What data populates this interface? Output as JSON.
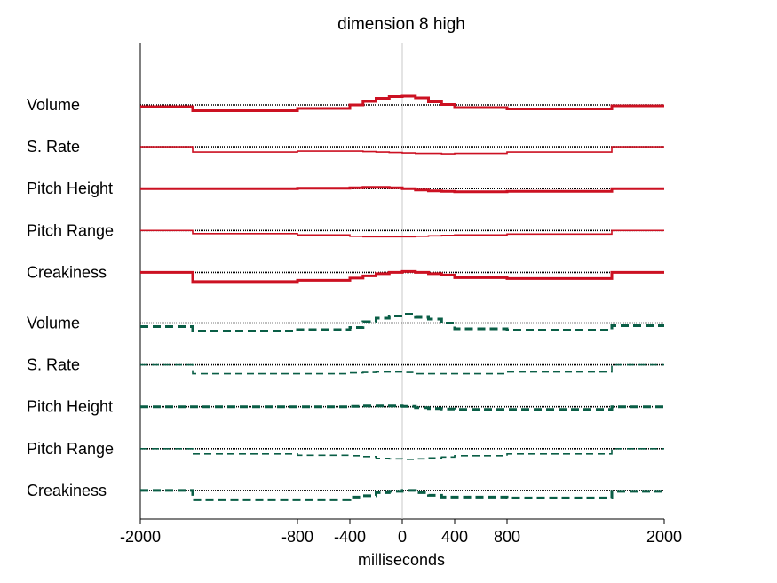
{
  "chart_data": {
    "type": "line",
    "title": "dimension  8 high",
    "xlabel": "milliseconds",
    "xlim": [
      -2000,
      2000
    ],
    "xticks": [
      -2000,
      -800,
      -400,
      0,
      400,
      800,
      2000
    ],
    "grid": false,
    "colors": {
      "upper": "#cc1122",
      "lower": "#0a5e46",
      "baseline": "#000000",
      "zero_line": "#c8c8c8"
    },
    "x": [
      -2000,
      -1600,
      -800,
      -400,
      -300,
      -200,
      -100,
      0,
      100,
      200,
      300,
      400,
      800,
      1600,
      2000
    ],
    "series": [
      {
        "label": "Volume",
        "group": "upper",
        "style": "solid",
        "weight": "thick",
        "values": [
          -0.4,
          -1.3,
          -0.8,
          0.0,
          0.8,
          1.5,
          1.9,
          2.0,
          1.6,
          0.7,
          0.1,
          -0.6,
          -0.9,
          -0.2,
          -0.2
        ]
      },
      {
        "label": "S. Rate",
        "group": "upper",
        "style": "solid",
        "weight": "thin",
        "values": [
          0.0,
          -1.2,
          -1.0,
          -1.0,
          -1.1,
          -1.2,
          -1.3,
          -1.4,
          -1.5,
          -1.5,
          -1.6,
          -1.5,
          -1.2,
          0.0,
          0.0
        ]
      },
      {
        "label": "Pitch Height",
        "group": "upper",
        "style": "solid",
        "weight": "thick",
        "values": [
          0.0,
          0.0,
          0.1,
          0.2,
          0.3,
          0.3,
          0.2,
          0.0,
          -0.3,
          -0.5,
          -0.6,
          -0.7,
          -0.6,
          0.0,
          0.0
        ]
      },
      {
        "label": "Pitch Range",
        "group": "upper",
        "style": "solid",
        "weight": "thin",
        "values": [
          0.0,
          -0.7,
          -1.0,
          -1.3,
          -1.4,
          -1.4,
          -1.4,
          -1.4,
          -1.3,
          -1.2,
          -1.1,
          -1.0,
          -0.8,
          0.0,
          0.0
        ]
      },
      {
        "label": "Creakiness",
        "group": "upper",
        "style": "solid",
        "weight": "thick",
        "values": [
          0.0,
          -2.1,
          -1.8,
          -1.3,
          -0.8,
          -0.3,
          0.0,
          0.2,
          0.0,
          -0.3,
          -0.6,
          -1.2,
          -1.4,
          0.0,
          0.0
        ]
      },
      {
        "label": "Volume",
        "group": "lower",
        "style": "dashed",
        "weight": "thick",
        "values": [
          -0.8,
          -1.8,
          -1.5,
          -1.0,
          0.3,
          1.1,
          1.6,
          2.0,
          1.3,
          0.9,
          0.0,
          -1.3,
          -1.6,
          -0.6,
          -0.6
        ]
      },
      {
        "label": "S. Rate",
        "group": "lower",
        "style": "dashed",
        "weight": "thin",
        "values": [
          0.0,
          -2.0,
          -2.0,
          -1.8,
          -1.7,
          -1.6,
          -1.6,
          -1.7,
          -2.0,
          -2.0,
          -2.0,
          -2.0,
          -1.6,
          0.0,
          0.0
        ]
      },
      {
        "label": "Pitch Height",
        "group": "lower",
        "style": "dashed",
        "weight": "thick",
        "values": [
          0.0,
          0.0,
          0.0,
          0.1,
          0.2,
          0.2,
          0.2,
          0.1,
          -0.2,
          -0.4,
          -0.5,
          -0.6,
          -0.6,
          0.0,
          0.0
        ]
      },
      {
        "label": "Pitch Range",
        "group": "lower",
        "style": "dashed",
        "weight": "thin",
        "values": [
          0.0,
          -1.2,
          -1.5,
          -1.6,
          -1.8,
          -2.2,
          -2.3,
          -2.4,
          -2.3,
          -2.1,
          -1.9,
          -1.6,
          -1.2,
          0.0,
          0.0
        ]
      },
      {
        "label": "Creakiness",
        "group": "lower",
        "style": "dashed",
        "weight": "thick",
        "values": [
          0.0,
          -2.1,
          -2.1,
          -1.5,
          -1.2,
          -0.5,
          -0.2,
          0.0,
          -0.5,
          -1.1,
          -1.5,
          -1.5,
          -1.7,
          -0.2,
          -0.2
        ]
      }
    ]
  }
}
